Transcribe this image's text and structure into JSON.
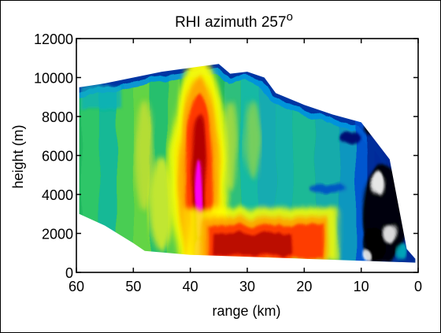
{
  "chart_data": {
    "type": "heatmap",
    "title": "RHI azimuth 257",
    "title_superscript": "o",
    "xlabel": "range (km)",
    "ylabel": "height (m)",
    "xlim": [
      60,
      0
    ],
    "ylim": [
      0,
      12000
    ],
    "x_reversed": true,
    "x_ticks": [
      60,
      50,
      40,
      30,
      20,
      10,
      0
    ],
    "y_ticks": [
      0,
      2000,
      4000,
      6000,
      8000,
      10000,
      12000
    ],
    "grid": false,
    "colormap": [
      "#ffffff",
      "#000000",
      "#00007f",
      "#0000ff",
      "#0080ff",
      "#00c0c0",
      "#00c060",
      "#40d040",
      "#c0e030",
      "#ffff00",
      "#ffa000",
      "#ff4000",
      "#d00000",
      "#a00000",
      "#ff00ff"
    ],
    "echo_top_profile": [
      {
        "range_km": 59.5,
        "top_m": 9500
      },
      {
        "range_km": 55,
        "top_m": 9700
      },
      {
        "range_km": 50,
        "top_m": 10000
      },
      {
        "range_km": 45,
        "top_m": 10300
      },
      {
        "range_km": 40,
        "top_m": 10500
      },
      {
        "range_km": 35,
        "top_m": 10700
      },
      {
        "range_km": 33,
        "top_m": 10200
      },
      {
        "range_km": 30,
        "top_m": 10300
      },
      {
        "range_km": 27,
        "top_m": 10000
      },
      {
        "range_km": 25,
        "top_m": 9200
      },
      {
        "range_km": 20,
        "top_m": 8600
      },
      {
        "range_km": 15,
        "top_m": 8100
      },
      {
        "range_km": 10,
        "top_m": 7700
      },
      {
        "range_km": 5,
        "top_m": 5800
      },
      {
        "range_km": 2,
        "top_m": 1200
      },
      {
        "range_km": 0.5,
        "top_m": 700
      }
    ],
    "echo_base_profile": [
      {
        "range_km": 59.5,
        "base_m": 3000
      },
      {
        "range_km": 55,
        "base_m": 2400
      },
      {
        "range_km": 50,
        "base_m": 1500
      },
      {
        "range_km": 48,
        "base_m": 1100
      },
      {
        "range_km": 40,
        "base_m": 900
      },
      {
        "range_km": 20,
        "base_m": 700
      },
      {
        "range_km": 0.5,
        "base_m": 500
      }
    ],
    "features": [
      {
        "name": "convective core",
        "range_km": [
          36,
          41
        ],
        "height_m": [
          500,
          8600
        ],
        "peak": "magenta"
      },
      {
        "name": "low-level band",
        "range_km": [
          17,
          36
        ],
        "height_m": [
          700,
          2300
        ],
        "peak": "red"
      },
      {
        "name": "near-range weak echo",
        "range_km": [
          1,
          10
        ],
        "height_m": [
          500,
          5000
        ],
        "peak": "black"
      }
    ]
  }
}
